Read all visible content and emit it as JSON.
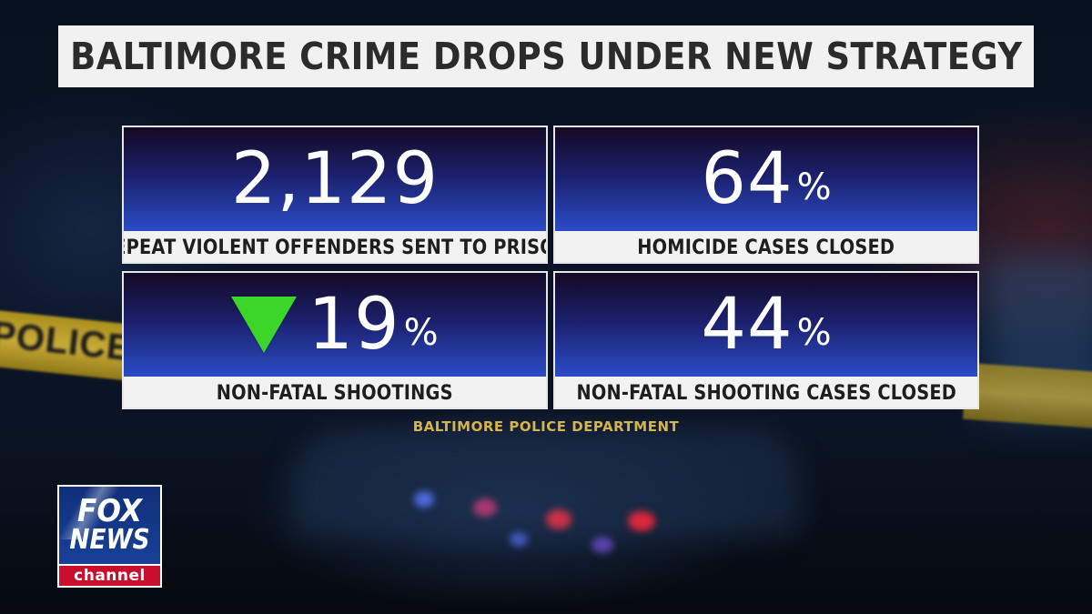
{
  "title": "BALTIMORE CRIME DROPS UNDER NEW STRATEGY",
  "background": {
    "tape_text": "POLICE LI"
  },
  "stats": [
    {
      "value": "2,129",
      "suffix": "",
      "label": "REPEAT VIOLENT OFFENDERS SENT TO PRISON"
    },
    {
      "value": "64",
      "suffix": "%",
      "label": "HOMICIDE CASES CLOSED"
    },
    {
      "value": "19",
      "suffix": "%",
      "label": "NON-FATAL SHOOTINGS",
      "indicator": "down-triangle-icon",
      "indicator_color": "#3cd62a"
    },
    {
      "value": "44",
      "suffix": "%",
      "label": "NON-FATAL SHOOTING CASES CLOSED"
    }
  ],
  "source": "BALTIMORE POLICE DEPARTMENT",
  "logo": {
    "line1": "FOX",
    "line2": "NEWS",
    "line3": "channel",
    "colors": {
      "blue": "#1b46a0",
      "red": "#c8102e"
    }
  },
  "colors": {
    "panel_gradient_top": "#140a24",
    "panel_gradient_bottom": "#2a4cc7",
    "source_text": "#d8b347"
  }
}
